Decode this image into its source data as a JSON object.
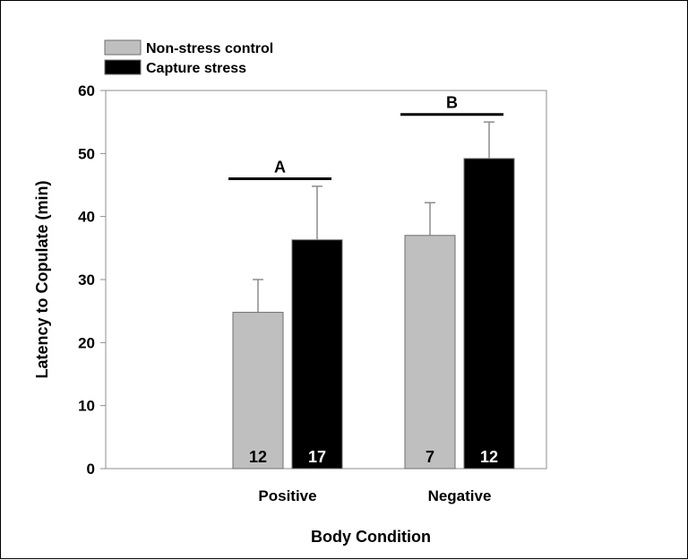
{
  "chart_data": {
    "type": "bar",
    "categories": [
      "Positive",
      "Negative"
    ],
    "series": [
      {
        "name": "Non-stress control",
        "color": "#bfbfbf",
        "values": [
          24.8,
          37.0
        ],
        "errors": [
          5.2,
          5.2
        ],
        "n": [
          "12",
          "7"
        ],
        "n_label_color": "#000000"
      },
      {
        "name": "Capture stress",
        "color": "#000000",
        "values": [
          36.3,
          49.2
        ],
        "errors": [
          8.5,
          5.8
        ],
        "n": [
          "17",
          "12"
        ],
        "n_label_color": "#ffffff"
      }
    ],
    "xlabel": "Body Condition",
    "ylabel": "Latency to Copulate (min)",
    "ylim": [
      0,
      60
    ],
    "yticks": [
      0,
      10,
      20,
      30,
      40,
      50,
      60
    ],
    "grid": false,
    "legend_position": "top-left",
    "annotations": [
      {
        "label": "A",
        "category_index": 0,
        "y": 46
      },
      {
        "label": "B",
        "category_index": 1,
        "y": 56.2
      }
    ]
  }
}
